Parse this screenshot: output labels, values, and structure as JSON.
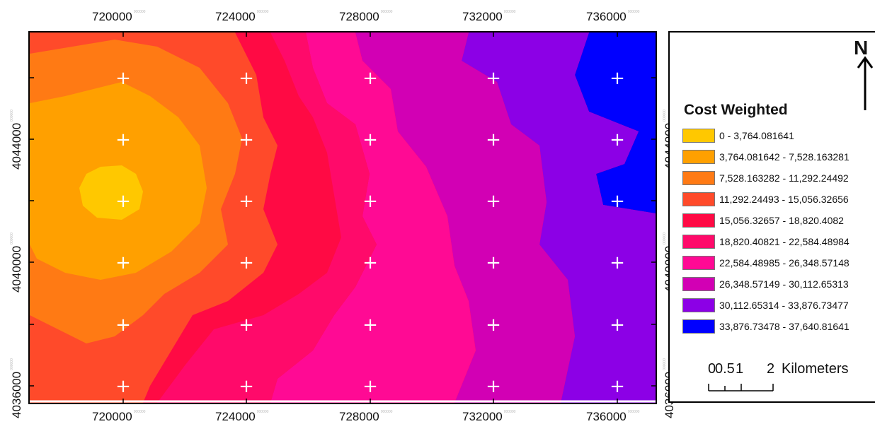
{
  "map": {
    "x_ticks": [
      "720000",
      "724000",
      "728000",
      "732000",
      "736000"
    ],
    "x_tick_suffix": "000000",
    "y_ticks": [
      "4044000",
      "4040000",
      "4036000"
    ],
    "y_tick_suffix": "000000",
    "grid_marker": "+"
  },
  "legend": {
    "title": "Cost Weighted",
    "classes": [
      {
        "label": "0 - 3,764.081641",
        "color": "#ffc800"
      },
      {
        "label": "3,764.081642 - 7,528.163281",
        "color": "#ffa000"
      },
      {
        "label": "7,528.163282 - 11,292.24492",
        "color": "#ff7a14"
      },
      {
        "label": "11,292.24493 - 15,056.32656",
        "color": "#ff4a2a"
      },
      {
        "label": "15,056.32657 - 18,820.4082",
        "color": "#ff0a44"
      },
      {
        "label": "18,820.40821 - 22,584.48984",
        "color": "#ff0a6a"
      },
      {
        "label": "22,584.48985 - 26,348.57148",
        "color": "#ff0a94"
      },
      {
        "label": "26,348.57149 - 30,112.65313",
        "color": "#d200b4"
      },
      {
        "label": "30,112.65314 - 33,876.73477",
        "color": "#8c00e6"
      },
      {
        "label": "33,876.73478 - 37,640.81641",
        "color": "#0000ff"
      }
    ]
  },
  "north_arrow": {
    "letter": "N",
    "icon": "north-arrow-icon"
  },
  "scale_bar": {
    "label_0": "0",
    "label_1": "0.5",
    "label_2": "1",
    "label_3": "2",
    "unit": "Kilometers"
  }
}
